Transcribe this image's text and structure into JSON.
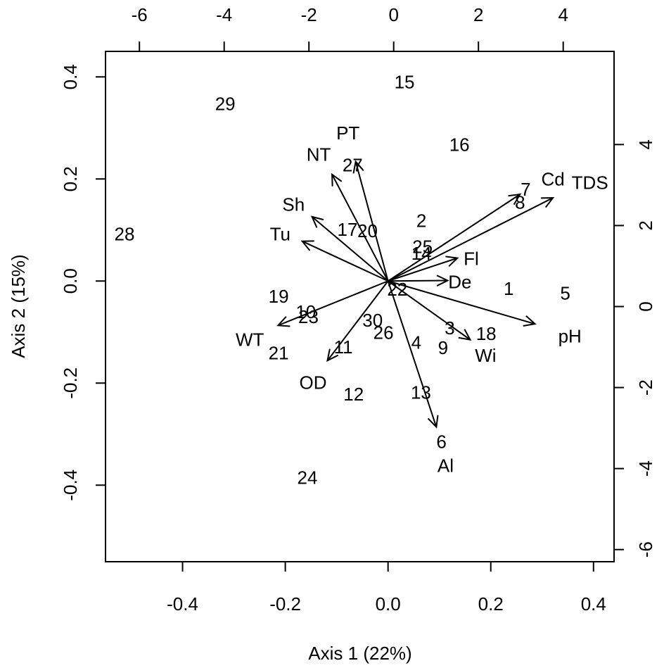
{
  "chart_data": {
    "type": "scatter",
    "title": "",
    "xlabel": "Axis 1 (22%)",
    "ylabel": "Axis 2 (15%)",
    "xlim": [
      -0.55,
      0.44
    ],
    "ylim": [
      -0.55,
      0.45
    ],
    "x_ticks": [
      "-0.4",
      "-0.2",
      "0.0",
      "0.2",
      "0.4"
    ],
    "y_ticks": [
      "-0.4",
      "-0.2",
      "0.0",
      "0.2",
      "0.4"
    ],
    "x2_lim": [
      -6.8,
      5.2
    ],
    "y2_lim": [
      -6.3,
      6.3
    ],
    "x2_ticks": [
      "-6",
      "-4",
      "-2",
      "0",
      "2",
      "4"
    ],
    "y2_ticks": [
      "-6",
      "-4",
      "-2",
      "0",
      "2",
      "4"
    ],
    "grid": false,
    "observations": [
      {
        "label": "1",
        "x": 0.235,
        "y": -0.015
      },
      {
        "label": "2",
        "x": 0.065,
        "y": 0.118
      },
      {
        "label": "3",
        "x": 0.12,
        "y": -0.092
      },
      {
        "label": "4",
        "x": 0.055,
        "y": -0.12
      },
      {
        "label": "5",
        "x": 0.345,
        "y": -0.024
      },
      {
        "label": "6",
        "x": 0.104,
        "y": -0.315
      },
      {
        "label": "7",
        "x": 0.268,
        "y": 0.18
      },
      {
        "label": "8",
        "x": 0.257,
        "y": 0.154
      },
      {
        "label": "9",
        "x": 0.107,
        "y": -0.131
      },
      {
        "label": "10",
        "x": -0.16,
        "y": -0.06
      },
      {
        "label": "11",
        "x": -0.087,
        "y": -0.129
      },
      {
        "label": "12",
        "x": -0.067,
        "y": -0.222
      },
      {
        "label": "13",
        "x": 0.064,
        "y": -0.218
      },
      {
        "label": "14",
        "x": 0.065,
        "y": 0.054
      },
      {
        "label": "15",
        "x": 0.032,
        "y": 0.39
      },
      {
        "label": "16",
        "x": 0.139,
        "y": 0.267
      },
      {
        "label": "17",
        "x": -0.079,
        "y": 0.101
      },
      {
        "label": "18",
        "x": 0.191,
        "y": -0.103
      },
      {
        "label": "19",
        "x": -0.213,
        "y": -0.03
      },
      {
        "label": "20",
        "x": -0.04,
        "y": 0.098
      },
      {
        "label": "21",
        "x": -0.213,
        "y": -0.141
      },
      {
        "label": "22",
        "x": 0.018,
        "y": -0.016
      },
      {
        "label": "23",
        "x": -0.155,
        "y": -0.07
      },
      {
        "label": "24",
        "x": -0.157,
        "y": -0.385
      },
      {
        "label": "25",
        "x": 0.067,
        "y": 0.067
      },
      {
        "label": "26",
        "x": -0.009,
        "y": -0.101
      },
      {
        "label": "27",
        "x": -0.069,
        "y": 0.227
      },
      {
        "label": "28",
        "x": -0.513,
        "y": 0.092
      },
      {
        "label": "29",
        "x": -0.317,
        "y": 0.347
      },
      {
        "label": "30",
        "x": -0.03,
        "y": -0.077
      }
    ],
    "variables": [
      {
        "label": "PT",
        "x": -0.063,
        "y": 0.234,
        "label_x": -0.078,
        "label_y": 0.29
      },
      {
        "label": "NT",
        "x": -0.109,
        "y": 0.209,
        "label_x": -0.135,
        "label_y": 0.248
      },
      {
        "label": "Cd",
        "x": 0.257,
        "y": 0.17,
        "label_x": 0.321,
        "label_y": 0.2
      },
      {
        "label": "TDS",
        "x": 0.321,
        "y": 0.163,
        "label_x": 0.393,
        "label_y": 0.193
      },
      {
        "label": "Sh",
        "x": -0.148,
        "y": 0.126,
        "label_x": -0.184,
        "label_y": 0.15
      },
      {
        "label": "Tu",
        "x": -0.167,
        "y": 0.078,
        "label_x": -0.21,
        "label_y": 0.092
      },
      {
        "label": "Fl",
        "x": 0.135,
        "y": 0.045,
        "label_x": 0.162,
        "label_y": 0.044
      },
      {
        "label": "De",
        "x": 0.116,
        "y": 0.001,
        "label_x": 0.14,
        "label_y": -0.002
      },
      {
        "label": "pH",
        "x": 0.286,
        "y": -0.084,
        "label_x": 0.354,
        "label_y": -0.108
      },
      {
        "label": "Wi",
        "x": 0.16,
        "y": -0.115,
        "label_x": 0.19,
        "label_y": -0.146
      },
      {
        "label": "Al",
        "x": 0.094,
        "y": -0.286,
        "label_x": 0.112,
        "label_y": -0.362
      },
      {
        "label": "OD",
        "x": -0.118,
        "y": -0.156,
        "label_x": -0.146,
        "label_y": -0.199
      },
      {
        "label": "WT",
        "x": -0.214,
        "y": -0.087,
        "label_x": -0.269,
        "label_y": -0.115
      }
    ]
  }
}
